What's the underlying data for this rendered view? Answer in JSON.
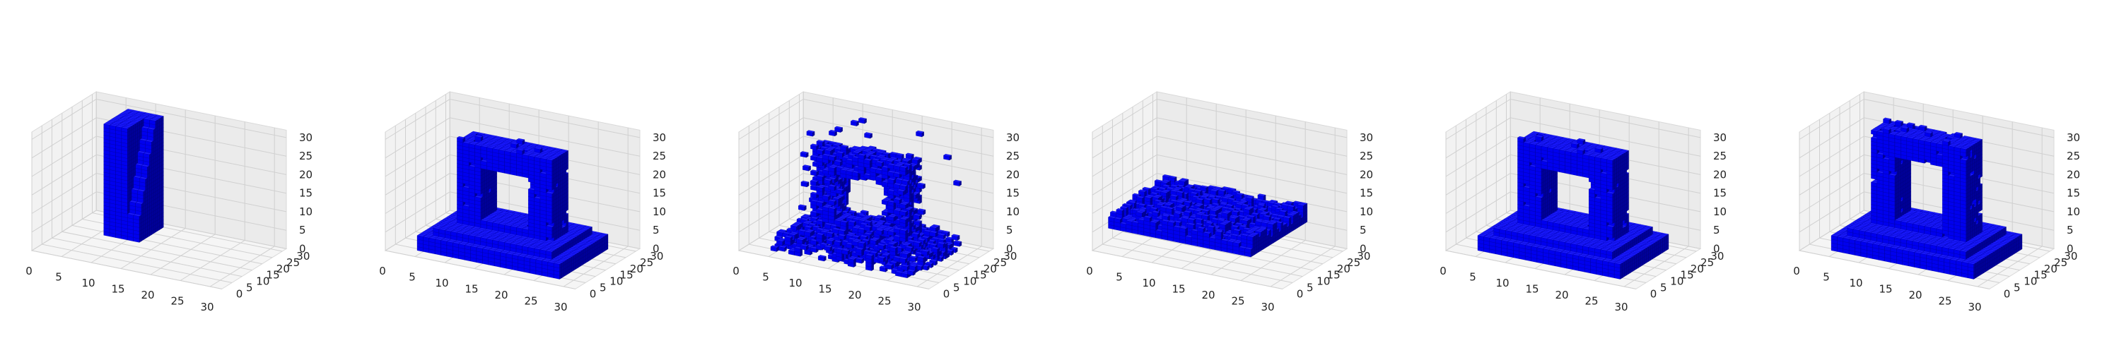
{
  "figure": {
    "background": "#ffffff"
  },
  "chart_data": [
    {
      "type": "voxel",
      "shape_hint": "tall slab with concave quarter-round face",
      "voxel_color": "#0000ee",
      "xlim": [
        0,
        32
      ],
      "ylim": [
        0,
        32
      ],
      "zlim": [
        0,
        32
      ],
      "x_ticks": [
        "0",
        "5",
        "10",
        "15",
        "20",
        "25",
        "30"
      ],
      "y_ticks": [
        "0",
        "5",
        "10",
        "15",
        "20",
        "25",
        "30"
      ],
      "z_ticks": [
        "0",
        "5",
        "10",
        "15",
        "20",
        "25",
        "30"
      ],
      "grid": true
    },
    {
      "type": "voxel",
      "shape_hint": "arch on a stepped base",
      "voxel_color": "#0000ee",
      "xlim": [
        0,
        32
      ],
      "ylim": [
        0,
        32
      ],
      "zlim": [
        0,
        32
      ],
      "x_ticks": [
        "0",
        "5",
        "10",
        "15",
        "20",
        "25",
        "30"
      ],
      "y_ticks": [
        "0",
        "5",
        "10",
        "15",
        "20",
        "25",
        "30"
      ],
      "z_ticks": [
        "0",
        "5",
        "10",
        "15",
        "20",
        "25",
        "30"
      ],
      "grid": true
    },
    {
      "type": "voxel",
      "shape_hint": "sparse noisy arch",
      "voxel_color": "#0000ee",
      "xlim": [
        0,
        32
      ],
      "ylim": [
        0,
        32
      ],
      "zlim": [
        0,
        32
      ],
      "x_ticks": [
        "0",
        "5",
        "10",
        "15",
        "20",
        "25",
        "30"
      ],
      "y_ticks": [
        "0",
        "5",
        "10",
        "15",
        "20",
        "25",
        "30"
      ],
      "z_ticks": [
        "0",
        "5",
        "10",
        "15",
        "20",
        "25",
        "30"
      ],
      "grid": true
    },
    {
      "type": "voxel",
      "shape_hint": "low flat block",
      "voxel_color": "#0000ee",
      "xlim": [
        0,
        32
      ],
      "ylim": [
        0,
        32
      ],
      "zlim": [
        0,
        32
      ],
      "x_ticks": [
        "0",
        "5",
        "10",
        "15",
        "20",
        "25",
        "30"
      ],
      "y_ticks": [
        "0",
        "5",
        "10",
        "15",
        "20",
        "25",
        "30"
      ],
      "z_ticks": [
        "0",
        "5",
        "10",
        "15",
        "20",
        "25",
        "30"
      ],
      "grid": true
    },
    {
      "type": "voxel",
      "shape_hint": "arch on a stepped base",
      "voxel_color": "#0000ee",
      "xlim": [
        0,
        32
      ],
      "ylim": [
        0,
        32
      ],
      "zlim": [
        0,
        32
      ],
      "x_ticks": [
        "0",
        "5",
        "10",
        "15",
        "20",
        "25",
        "30"
      ],
      "y_ticks": [
        "0",
        "5",
        "10",
        "15",
        "20",
        "25",
        "30"
      ],
      "z_ticks": [
        "0",
        "5",
        "10",
        "15",
        "20",
        "25",
        "30"
      ],
      "grid": true
    },
    {
      "type": "voxel",
      "shape_hint": "tall arch on a stepped base",
      "voxel_color": "#0000ee",
      "xlim": [
        0,
        32
      ],
      "ylim": [
        0,
        32
      ],
      "zlim": [
        0,
        32
      ],
      "x_ticks": [
        "0",
        "5",
        "10",
        "15",
        "20",
        "25",
        "30"
      ],
      "y_ticks": [
        "0",
        "5",
        "10",
        "15",
        "20",
        "25",
        "30"
      ],
      "z_ticks": [
        "0",
        "5",
        "10",
        "15",
        "20",
        "25",
        "30"
      ],
      "grid": true
    }
  ]
}
